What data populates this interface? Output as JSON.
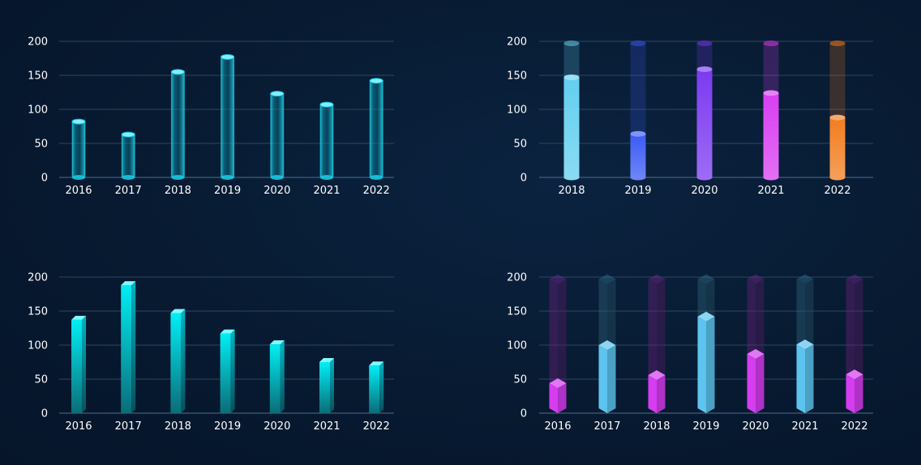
{
  "colors": {
    "background": "#071a31",
    "tick_text": "#ffffff",
    "grid": "#3a5572",
    "chart1_bar": "#19c6e0",
    "chart2_bars": [
      "#63cfee",
      "#3b5bf4",
      "#7b3af0",
      "#d83ef0",
      "#f27d20"
    ],
    "chart3_bar": "#00e5ec",
    "chart4_pink": "#d63cf0",
    "chart4_blue": "#5cc4ee"
  },
  "chart_data": [
    {
      "type": "bar",
      "style": "glass-cylinder",
      "categories": [
        "2016",
        "2017",
        "2018",
        "2019",
        "2020",
        "2021",
        "2022"
      ],
      "values": [
        82,
        63,
        155,
        177,
        123,
        107,
        142
      ],
      "yticks": [
        0,
        50,
        100,
        150,
        200
      ],
      "ylim": [
        0,
        200
      ],
      "grid": true
    },
    {
      "type": "bar",
      "style": "cylinder-with-track",
      "categories": [
        "2018",
        "2019",
        "2020",
        "2021",
        "2022"
      ],
      "values": [
        147,
        64,
        159,
        124,
        88
      ],
      "track_max": 197,
      "yticks": [
        0,
        50,
        100,
        150,
        200
      ],
      "ylim": [
        0,
        200
      ],
      "grid": true
    },
    {
      "type": "bar",
      "style": "3d-prism",
      "categories": [
        "2016",
        "2017",
        "2018",
        "2019",
        "2020",
        "2021",
        "2022"
      ],
      "values": [
        137,
        188,
        147,
        117,
        101,
        75,
        70
      ],
      "yticks": [
        0,
        50,
        100,
        150,
        200
      ],
      "ylim": [
        0,
        200
      ],
      "grid": true
    },
    {
      "type": "bar",
      "style": "hexagonal-prism-with-track",
      "categories": [
        "2016",
        "2017",
        "2018",
        "2019",
        "2020",
        "2021",
        "2022"
      ],
      "values": [
        44,
        100,
        56,
        142,
        87,
        101,
        57
      ],
      "track_max": 197,
      "yticks": [
        0,
        50,
        100,
        150,
        200
      ],
      "ylim": [
        0,
        200
      ],
      "grid": true
    }
  ]
}
